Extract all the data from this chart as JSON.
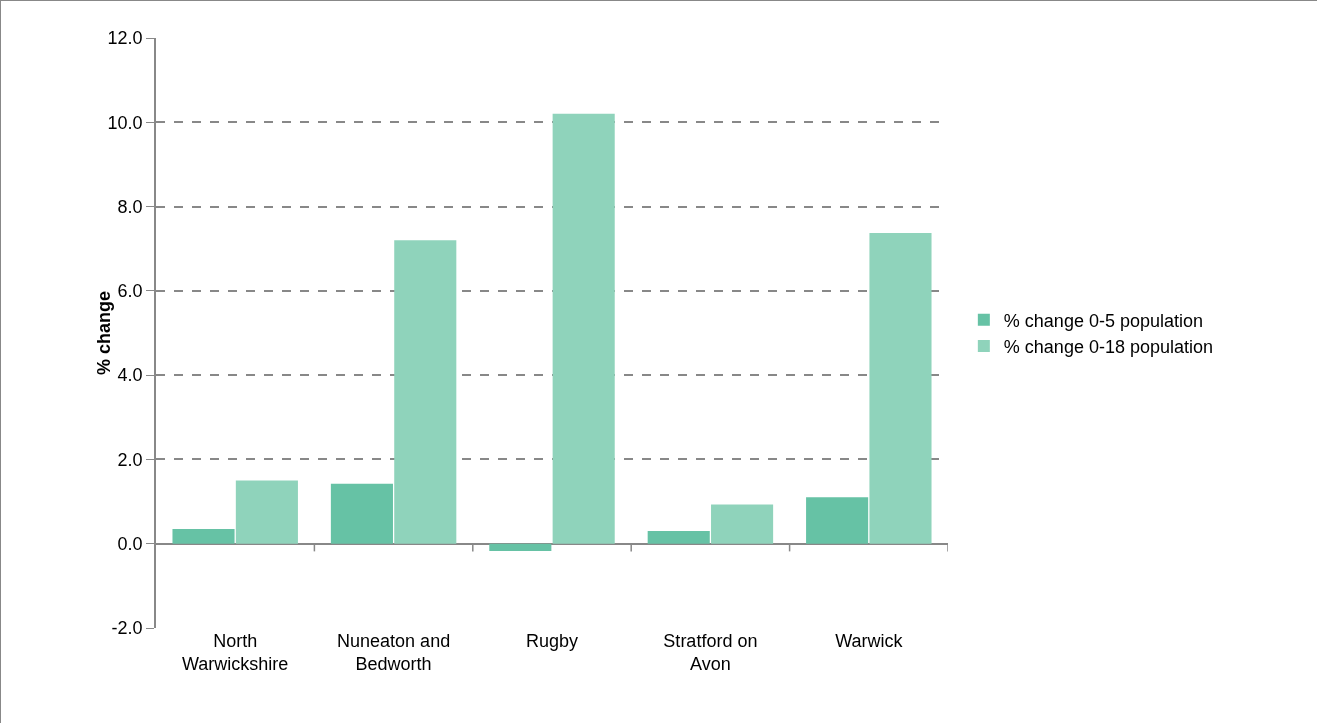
{
  "chart_data": {
    "type": "bar",
    "ylabel": "% change",
    "categories": [
      "North Warwickshire",
      "Nuneaton and Bedworth",
      "Rugby",
      "Stratford on Avon",
      "Warwick"
    ],
    "series": [
      {
        "name": "% change 0-5 population",
        "color": "#66c2a5",
        "values": [
          0.35,
          1.42,
          -0.17,
          0.3,
          1.1
        ]
      },
      {
        "name": "% change 0-18 population",
        "color": "#8fd3bb",
        "values": [
          1.5,
          7.2,
          10.2,
          0.93,
          7.37
        ]
      }
    ],
    "ylim": [
      -2,
      12
    ],
    "yticks": [
      {
        "value": -2,
        "label": "-2.0"
      },
      {
        "value": 0,
        "label": "0.0"
      },
      {
        "value": 2,
        "label": "2.0"
      },
      {
        "value": 4,
        "label": "4.0"
      },
      {
        "value": 6,
        "label": "6.0"
      },
      {
        "value": 8,
        "label": "8.0"
      },
      {
        "value": 10,
        "label": "10.0"
      },
      {
        "value": 12,
        "label": "12.0"
      }
    ],
    "grid": "y",
    "legend": "right"
  }
}
